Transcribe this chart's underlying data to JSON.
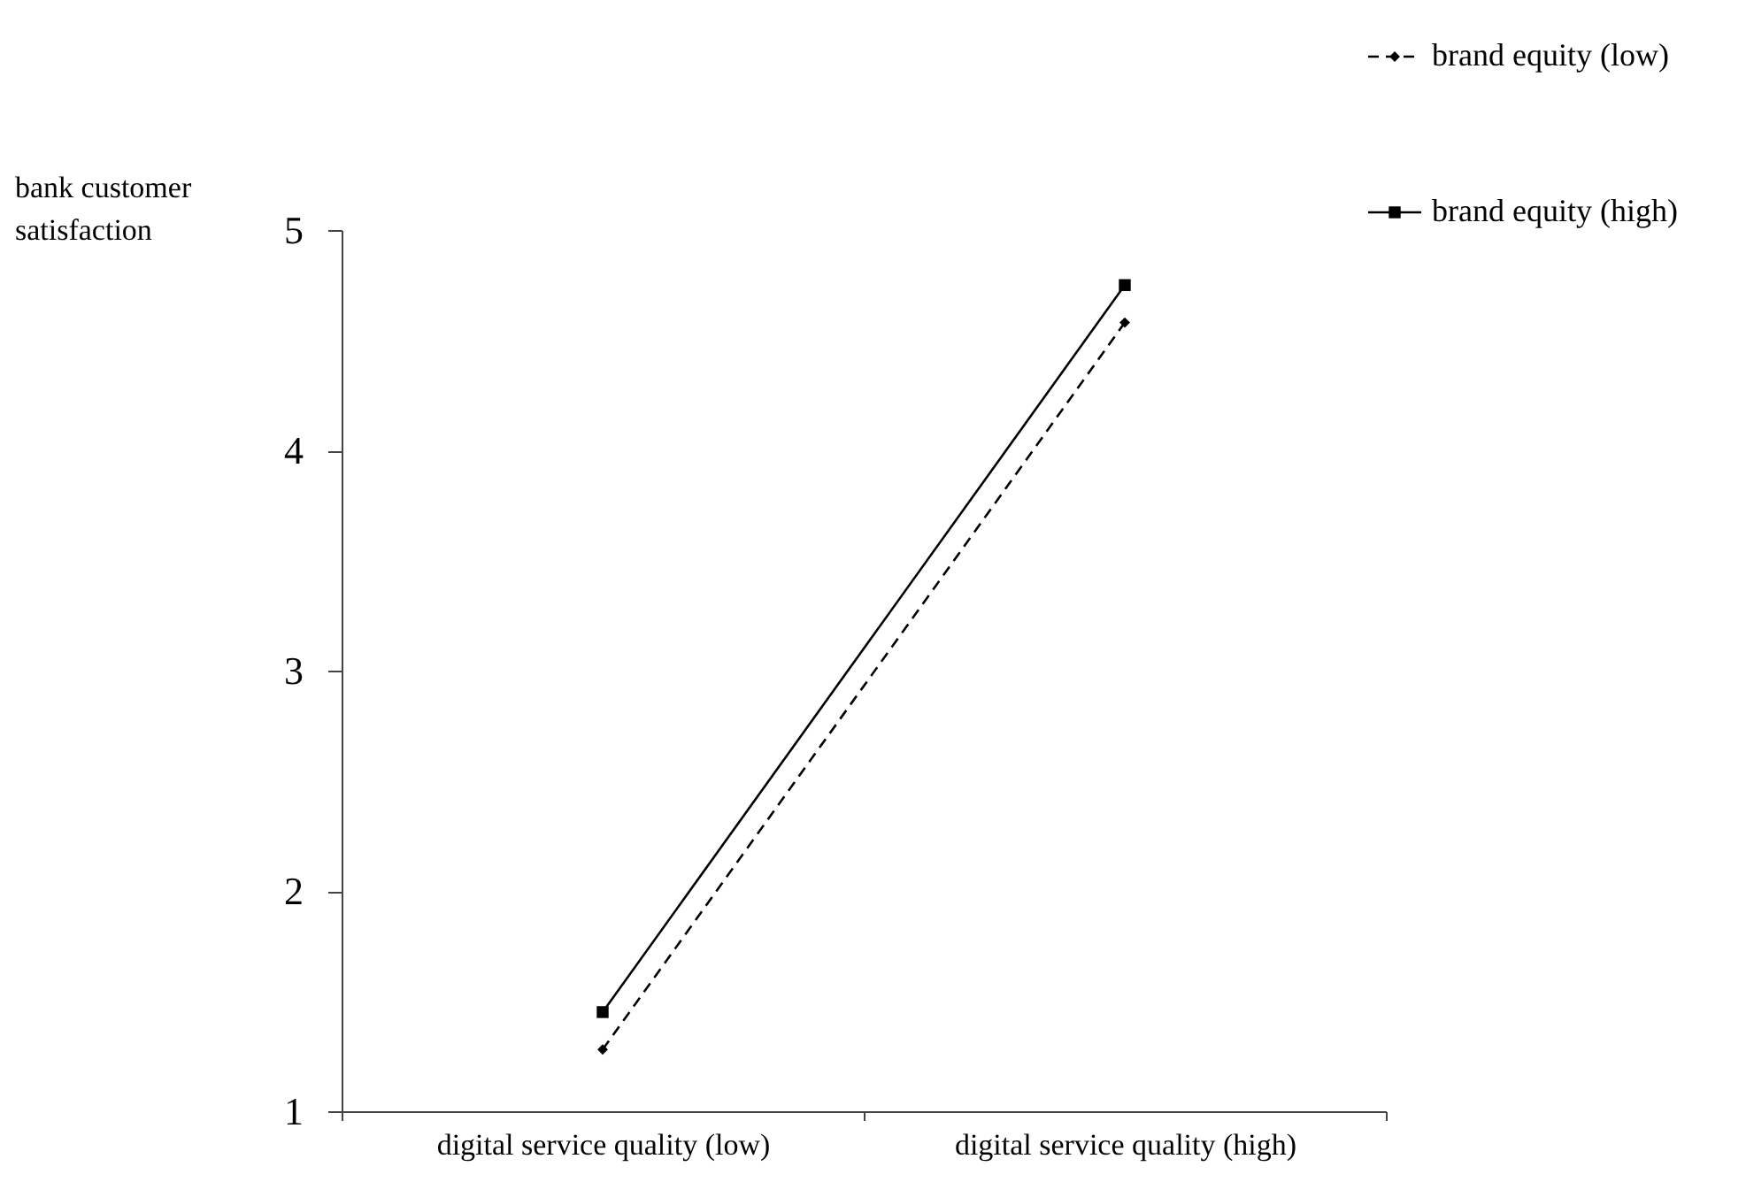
{
  "chart_data": {
    "type": "line",
    "ylabel": "bank customer satisfaction",
    "categories": [
      "digital service quality (low)",
      "digital service quality  (high)"
    ],
    "series": [
      {
        "name": "brand equity (low)",
        "color": "#000000",
        "values": [
          1.28,
          4.58
        ],
        "marker": "diamond",
        "line_style": "dashed"
      },
      {
        "name": "brand equity (high)",
        "color": "#000000",
        "values": [
          1.45,
          4.75
        ],
        "marker": "square",
        "line_style": "solid"
      }
    ],
    "ylim": [
      1,
      5
    ],
    "yticks": [
      1,
      2,
      3,
      4,
      5
    ],
    "grid": false,
    "legend": "top right"
  }
}
